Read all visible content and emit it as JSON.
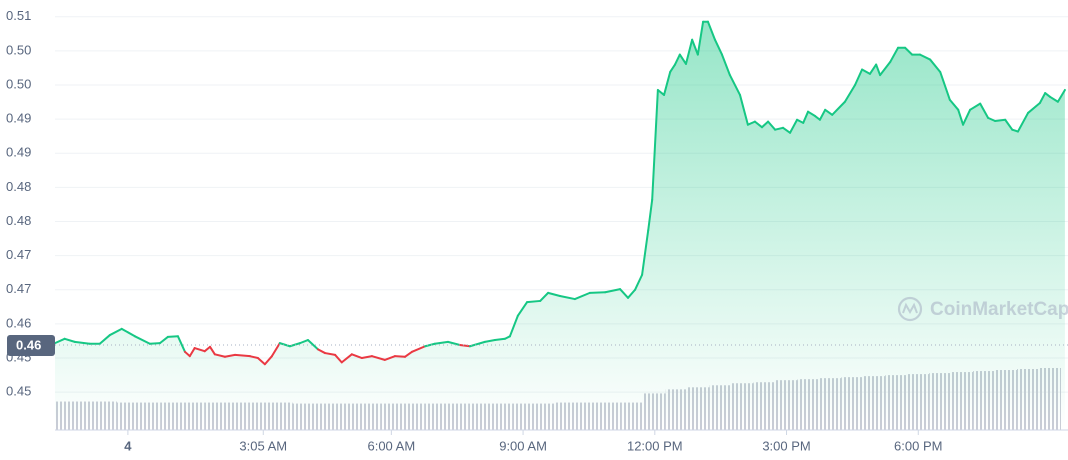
{
  "chart_data": {
    "type": "line",
    "watermark": "CoinMarketCap",
    "x": [
      -1.66,
      -1.44,
      -1.21,
      -0.87,
      -0.64,
      -0.41,
      -0.14,
      0.16,
      0.5,
      0.73,
      0.91,
      1.14,
      1.3,
      1.41,
      1.52,
      1.75,
      1.87,
      1.98,
      2.21,
      2.44,
      2.78,
      2.96,
      3.12,
      3.28,
      3.46,
      3.69,
      3.92,
      4.1,
      4.33,
      4.49,
      4.72,
      4.87,
      5.1,
      5.33,
      5.56,
      5.85,
      6.08,
      6.31,
      6.47,
      6.77,
      6.99,
      7.29,
      7.56,
      7.79,
      8.13,
      8.36,
      8.59,
      8.7,
      8.88,
      9.09,
      9.39,
      9.57,
      9.84,
      10.18,
      10.52,
      10.87,
      11.21,
      11.39,
      11.55,
      11.71,
      11.85,
      11.94,
      12.07,
      12.21,
      12.35,
      12.46,
      12.57,
      12.71,
      12.85,
      12.98,
      13.1,
      13.21,
      13.37,
      13.53,
      13.71,
      13.94,
      14.12,
      14.28,
      14.44,
      14.58,
      14.74,
      14.92,
      15.08,
      15.24,
      15.38,
      15.49,
      15.65,
      15.76,
      15.88,
      16.04,
      16.33,
      16.56,
      16.72,
      16.9,
      17.04,
      17.13,
      17.36,
      17.54,
      17.7,
      17.86,
      18.04,
      18.27,
      18.5,
      18.72,
      18.91,
      19.02,
      19.18,
      19.41,
      19.59,
      19.75,
      19.98,
      20.14,
      20.27,
      20.5,
      20.77,
      20.89,
      21.0,
      21.18,
      21.34
    ],
    "series": [
      {
        "values": [
          0.4569,
          0.4576,
          0.4571,
          0.4568,
          0.4568,
          0.4582,
          0.4592,
          0.458,
          0.4568,
          0.4569,
          0.4579,
          0.458,
          0.4555,
          0.4548,
          0.4561,
          0.4556,
          0.4563,
          0.4551,
          0.4547,
          0.455,
          0.4548,
          0.4545,
          0.4535,
          0.4548,
          0.4569,
          0.4564,
          0.4569,
          0.4574,
          0.4559,
          0.4553,
          0.455,
          0.4538,
          0.4551,
          0.4545,
          0.4548,
          0.4542,
          0.4548,
          0.4547,
          0.4555,
          0.4564,
          0.4568,
          0.4571,
          0.4566,
          0.4564,
          0.4571,
          0.4574,
          0.4576,
          0.458,
          0.4613,
          0.4635,
          0.4637,
          0.465,
          0.4645,
          0.464,
          0.465,
          0.4651,
          0.4656,
          0.4642,
          0.4655,
          0.4679,
          0.4751,
          0.48,
          0.4977,
          0.4969,
          0.5006,
          0.5018,
          0.5034,
          0.5019,
          0.5058,
          0.5034,
          0.5087,
          0.5087,
          0.5058,
          0.5034,
          0.5001,
          0.4969,
          0.4921,
          0.4926,
          0.4917,
          0.4926,
          0.4913,
          0.4916,
          0.4908,
          0.4929,
          0.4924,
          0.4942,
          0.4935,
          0.4929,
          0.4945,
          0.4937,
          0.4958,
          0.4985,
          0.501,
          0.5003,
          0.5018,
          0.5001,
          0.5022,
          0.5045,
          0.5045,
          0.5034,
          0.5034,
          0.5026,
          0.5006,
          0.4961,
          0.4945,
          0.4921,
          0.4945,
          0.4955,
          0.4932,
          0.4927,
          0.4929,
          0.4913,
          0.491,
          0.494,
          0.4956,
          0.4972,
          0.4966,
          0.4958,
          0.4977
        ],
        "up_color": "#16c784",
        "down_color": "#ea3943"
      }
    ],
    "baseline": {
      "value": 0.4566,
      "label": "0.46"
    },
    "volume": {
      "color": "#c9ccd6",
      "x": [
        -1.5,
        -1,
        -0.5,
        0,
        0.5,
        1,
        1.5,
        2,
        2.5,
        3,
        3.5,
        4,
        4.5,
        5,
        5.5,
        6,
        6.5,
        7,
        7.5,
        8,
        8.5,
        9,
        9.5,
        10,
        10.5,
        11,
        11.5,
        12,
        12.5,
        13,
        13.5,
        14,
        14.5,
        15,
        15.5,
        16,
        16.5,
        17,
        17.5,
        18,
        18.5,
        19,
        19.5,
        20,
        20.5,
        21
      ],
      "values": [
        28,
        28,
        28,
        27,
        27,
        27,
        27,
        27,
        27,
        27,
        27,
        26,
        26,
        26,
        26,
        26,
        26,
        26,
        26,
        26,
        26,
        26,
        26,
        27,
        27,
        27,
        27,
        36,
        40,
        42,
        44,
        46,
        47,
        49,
        50,
        51,
        52,
        53,
        54,
        55,
        56,
        57,
        58,
        59,
        60,
        61
      ]
    },
    "xlim": [
      -1.66,
      21.41
    ],
    "xticks": [
      {
        "value": 0,
        "label": "4"
      },
      {
        "value": 3.083,
        "label": "3:05 AM"
      },
      {
        "value": 6,
        "label": "6:00 AM"
      },
      {
        "value": 9,
        "label": "9:00 AM"
      },
      {
        "value": 12,
        "label": "12:00 PM"
      },
      {
        "value": 15,
        "label": "3:00 PM"
      },
      {
        "value": 18,
        "label": "6:00 PM"
      }
    ],
    "ylim": [
      0.4429,
      0.5122
    ],
    "yticks": [
      {
        "value": 0.5095,
        "label": "0.51"
      },
      {
        "value": 0.504,
        "label": "0.50"
      },
      {
        "value": 0.4985,
        "label": "0.50"
      },
      {
        "value": 0.493,
        "label": "0.49"
      },
      {
        "value": 0.4875,
        "label": "0.49"
      },
      {
        "value": 0.482,
        "label": "0.48"
      },
      {
        "value": 0.4765,
        "label": "0.48"
      },
      {
        "value": 0.471,
        "label": "0.47"
      },
      {
        "value": 0.4655,
        "label": "0.47"
      },
      {
        "value": 0.46,
        "label": "0.46"
      },
      {
        "value": 0.4545,
        "label": "0.45"
      },
      {
        "value": 0.449,
        "label": "0.45"
      }
    ],
    "grid": true
  }
}
